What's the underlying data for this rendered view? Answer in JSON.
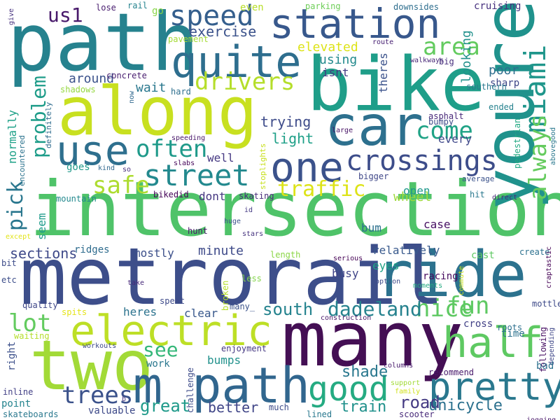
{
  "words": [
    {
      "text": "intersection",
      "color": "#4fc369"
    },
    {
      "text": "metrorail",
      "color": "#3d4e8a"
    },
    {
      "text": "path",
      "color": "#26828e"
    },
    {
      "text": "along",
      "color": "#c8e020"
    },
    {
      "text": "bike",
      "color": "#1f9e89"
    },
    {
      "text": "many",
      "color": "#440f54"
    },
    {
      "text": "car",
      "color": "#2d708e"
    },
    {
      "text": "youre",
      "color": "#20928c"
    },
    {
      "text": "ride",
      "color": "#2c728e"
    },
    {
      "text": "two",
      "color": "#a2da37"
    },
    {
      "text": "electric",
      "color": "#bddf26"
    },
    {
      "text": "m path",
      "color": "#31668e"
    },
    {
      "text": "station",
      "color": "#38588c"
    },
    {
      "text": "quite",
      "color": "#2e6e8e"
    },
    {
      "text": "use",
      "color": "#2e6f8e"
    },
    {
      "text": "one",
      "color": "#3b528b"
    },
    {
      "text": "street",
      "color": "#23898e"
    },
    {
      "text": "pretty",
      "color": "#2a788e"
    },
    {
      "text": "half",
      "color": "#5ec962"
    },
    {
      "text": "good",
      "color": "#25ab82"
    },
    {
      "text": "miami",
      "color": "#1f968b"
    },
    {
      "text": "always",
      "color": "#65cb5e"
    },
    {
      "text": "crossings",
      "color": "#3d4d8a"
    },
    {
      "text": "speed",
      "color": "#355f8d"
    },
    {
      "text": "us1",
      "color": "#48196b"
    },
    {
      "text": "area",
      "color": "#63cb5f"
    },
    {
      "text": "drivers",
      "color": "#b5de2b"
    },
    {
      "text": "often",
      "color": "#1f9a8a"
    },
    {
      "text": "safe",
      "color": "#addc30"
    },
    {
      "text": "come",
      "color": "#20a386"
    },
    {
      "text": "traffic",
      "color": "#dde318"
    },
    {
      "text": "problem",
      "color": "#1e9c89"
    },
    {
      "text": "pick",
      "color": "#2a778e"
    },
    {
      "text": "lot",
      "color": "#63cb5f"
    },
    {
      "text": "fun",
      "color": "#5ec962"
    },
    {
      "text": "nice",
      "color": "#5ec962"
    },
    {
      "text": "south",
      "color": "#25838e"
    },
    {
      "text": "dadeland",
      "color": "#26828e"
    },
    {
      "text": "trees",
      "color": "#3b528b"
    },
    {
      "text": "see",
      "color": "#35b779"
    },
    {
      "text": "train",
      "color": "#21918c"
    },
    {
      "text": "road",
      "color": "#443a83"
    },
    {
      "text": "unicycle",
      "color": "#2c718e"
    },
    {
      "text": "shade",
      "color": "#2a788e"
    },
    {
      "text": "great",
      "color": "#1f9a8a"
    },
    {
      "text": "better",
      "color": "#404688"
    },
    {
      "text": "sections",
      "color": "#3e4989"
    },
    {
      "text": "trying",
      "color": "#3e4c8a"
    },
    {
      "text": "light",
      "color": "#1fa088"
    },
    {
      "text": "wheel",
      "color": "#9dd93b"
    },
    {
      "text": "open",
      "color": "#1f988b"
    },
    {
      "text": "exercise",
      "color": "#3b528b"
    },
    {
      "text": "elevated",
      "color": "#dde318"
    },
    {
      "text": "wait",
      "color": "#2a788e"
    },
    {
      "text": "around",
      "color": "#3b528b"
    },
    {
      "text": "using",
      "color": "#238a8d"
    },
    {
      "text": "isnt",
      "color": "#443983"
    },
    {
      "text": "poor",
      "color": "#2e6e8e"
    },
    {
      "text": "looking",
      "color": "#21918c"
    },
    {
      "text": "theres",
      "color": "#3b528b"
    },
    {
      "text": "sharp",
      "color": "#3f4788"
    },
    {
      "text": "every",
      "color": "#3f4889"
    },
    {
      "text": "relatively",
      "color": "#38598c"
    },
    {
      "text": "busy",
      "color": "#404588"
    },
    {
      "text": "eyes",
      "color": "#20a386"
    },
    {
      "text": "racing",
      "color": "#460b5e"
    },
    {
      "text": "case",
      "color": "#471063"
    },
    {
      "text": "bum",
      "color": "#2c718e"
    },
    {
      "text": "minute",
      "color": "#3e4a89"
    },
    {
      "text": "mostly",
      "color": "#3c4f8a"
    },
    {
      "text": "well",
      "color": "#453882"
    },
    {
      "text": "dont",
      "color": "#453781"
    },
    {
      "text": "heres",
      "color": "#2c738e"
    },
    {
      "text": "clear",
      "color": "#38588c"
    },
    {
      "text": "work",
      "color": "#2a778e"
    },
    {
      "text": "bumps",
      "color": "#21918c"
    },
    {
      "text": "goes",
      "color": "#1f998a"
    },
    {
      "text": "normally",
      "color": "#1fa188"
    },
    {
      "text": "seem",
      "color": "#1e9b8a"
    },
    {
      "text": "point",
      "color": "#25848e"
    },
    {
      "text": "valuable",
      "color": "#3e4a89"
    },
    {
      "text": "cross",
      "color": "#424186"
    },
    {
      "text": "mountain",
      "color": "#23898e"
    },
    {
      "text": "lose",
      "color": "#481d6f"
    },
    {
      "text": "rail",
      "color": "#25838e"
    },
    {
      "text": "go",
      "color": "#89d548"
    },
    {
      "text": "even",
      "color": "#b8de29"
    },
    {
      "text": "parking",
      "color": "#6ece58"
    },
    {
      "text": "downsides",
      "color": "#2e6e8e"
    },
    {
      "text": "cruising",
      "color": "#46307e"
    },
    {
      "text": "pavement",
      "color": "#a5db36"
    },
    {
      "text": "concrete",
      "color": "#481d6f"
    },
    {
      "text": "route",
      "color": "#482173"
    },
    {
      "text": "walkways",
      "color": "#482878"
    },
    {
      "text": "big",
      "color": "#472f7d"
    },
    {
      "text": "southern",
      "color": "#2a788e"
    },
    {
      "text": "shadows",
      "color": "#95d840"
    },
    {
      "text": "hard",
      "color": "#2e6f8e"
    },
    {
      "text": "now",
      "color": "#31688e"
    },
    {
      "text": "definitely",
      "color": "#2f6c8e"
    },
    {
      "text": "asphalt",
      "color": "#482979"
    },
    {
      "text": "ended",
      "color": "#26828e"
    },
    {
      "text": "bumpy",
      "color": "#3e4c8a"
    },
    {
      "text": "pedestrian",
      "color": "#23a983"
    },
    {
      "text": "large",
      "color": "#471365"
    },
    {
      "text": "speeding",
      "color": "#481769"
    },
    {
      "text": "slabs",
      "color": "#450559"
    },
    {
      "text": "stoplights",
      "color": "#c8e020"
    },
    {
      "text": "so",
      "color": "#472d7b"
    },
    {
      "text": "kind",
      "color": "#31688e"
    },
    {
      "text": "bikedid",
      "color": "#450457"
    },
    {
      "text": "skating",
      "color": "#472c7a"
    },
    {
      "text": "bigger",
      "color": "#3f4788"
    },
    {
      "text": "average",
      "color": "#3b528b"
    },
    {
      "text": "hit",
      "color": "#2a788e"
    },
    {
      "text": "direct",
      "color": "#482878"
    },
    {
      "text": "abovegood",
      "color": "#2a788e"
    },
    {
      "text": "encountered",
      "color": "#2c738e"
    },
    {
      "text": "except",
      "color": "#e2e418"
    },
    {
      "text": "hunt",
      "color": "#481769"
    },
    {
      "text": "id",
      "color": "#443983"
    },
    {
      "text": "huge",
      "color": "#3b528b"
    },
    {
      "text": "stars",
      "color": "#46337f"
    },
    {
      "text": "ridges",
      "color": "#2f6c8e"
    },
    {
      "text": "length",
      "color": "#8bd646"
    },
    {
      "text": "serious",
      "color": "#440154"
    },
    {
      "text": "cast",
      "color": "#5ec962"
    },
    {
      "text": "create",
      "color": "#2c718e"
    },
    {
      "text": "craptastic",
      "color": "#440154"
    },
    {
      "text": "bit",
      "color": "#3e4c8a"
    },
    {
      "text": "etc",
      "color": "#3d4e8a"
    },
    {
      "text": "take",
      "color": "#472a7a"
    },
    {
      "text": "less",
      "color": "#84d44b"
    },
    {
      "text": "option",
      "color": "#3e4c8a"
    },
    {
      "text": "moments",
      "color": "#25ab82"
    },
    {
      "text": "commute",
      "color": "#c8e020"
    },
    {
      "text": "broken",
      "color": "#b5de2b"
    },
    {
      "text": "spent",
      "color": "#3e4a89"
    },
    {
      "text": "quality",
      "color": "#3f4788"
    },
    {
      "text": "spits",
      "color": "#e5e419"
    },
    {
      "text": "many_",
      "color": "#3b528b"
    },
    {
      "text": "construction",
      "color": "#481769"
    },
    {
      "text": "mottled",
      "color": "#3e4a89"
    },
    {
      "text": "roots",
      "color": "#2d708e"
    },
    {
      "text": "time",
      "color": "#2c728e"
    },
    {
      "text": "following",
      "color": "#471063"
    },
    {
      "text": "depending",
      "color": "#3f4788"
    },
    {
      "text": "right",
      "color": "#3c508b"
    },
    {
      "text": "waiting",
      "color": "#b5de2b"
    },
    {
      "text": "workouts",
      "color": "#3e4a89"
    },
    {
      "text": "enjoyment",
      "color": "#453882"
    },
    {
      "text": "challenge",
      "color": "#3e4c8a"
    },
    {
      "text": "columns",
      "color": "#481a6c"
    },
    {
      "text": "recommend",
      "color": "#48196b"
    },
    {
      "text": "bad",
      "color": "#2d708e"
    },
    {
      "text": "inline",
      "color": "#424086"
    },
    {
      "text": "skateboards",
      "color": "#2a788e"
    },
    {
      "text": "b",
      "color": "#453581"
    },
    {
      "text": "much",
      "color": "#3e4c8a"
    },
    {
      "text": "lined",
      "color": "#2a788e"
    },
    {
      "text": "scooter",
      "color": "#482979"
    },
    {
      "text": "support",
      "color": "#a2da37"
    },
    {
      "text": "family",
      "color": "#d0e11c"
    },
    {
      "text": "jogging",
      "color": "#481769"
    },
    {
      "text": "give",
      "color": "#46327e"
    }
  ]
}
